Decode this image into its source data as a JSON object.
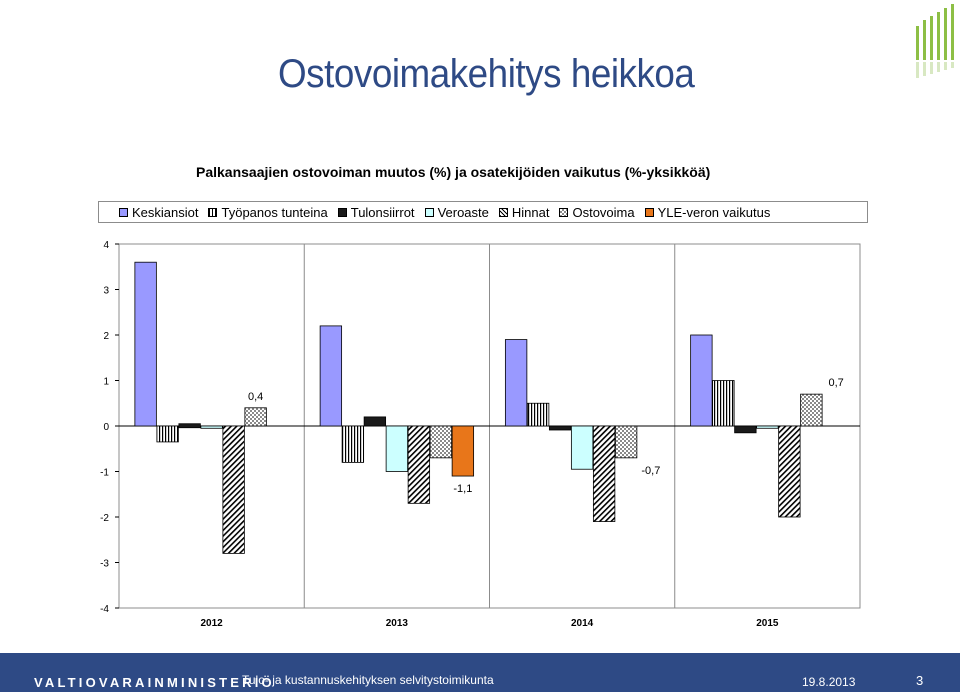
{
  "slide": {
    "title": "Ostovoimakehitys heikkoa"
  },
  "footer": {
    "ministry": "VALTIOVARAINMINISTERIÖ",
    "subtitle": "Tulo- ja kustannuskehityksen selvitystoimikunta",
    "date": "19.8.2013",
    "page": "3"
  },
  "colors": {
    "brand": "#2e4a85",
    "footer_bg": "#2e4a85",
    "logo_green": "#8dbf45"
  },
  "chart_data": {
    "type": "bar",
    "title": "Palkansaajien ostovoiman muutos (%) ja osatekijöiden vaikutus (%-yksikköä)",
    "categories": [
      "2012",
      "2013",
      "2014",
      "2015"
    ],
    "ylim": [
      -4,
      4
    ],
    "yticks": [
      4,
      3,
      2,
      1,
      0,
      -1,
      -2,
      -3,
      -4
    ],
    "grid": "vertical category separators",
    "legend_position": "top",
    "series": [
      {
        "name": "Keskiansiot",
        "values": [
          3.6,
          2.2,
          1.9,
          2.0
        ],
        "color": "#9999ff",
        "pattern": "solid"
      },
      {
        "name": "Työpanos tunteina",
        "values": [
          -0.35,
          -0.8,
          0.5,
          1.0
        ],
        "color": "#ffffff",
        "pattern": "vertical"
      },
      {
        "name": "Tulonsiirrot",
        "values": [
          0.05,
          0.2,
          -0.05,
          -0.15
        ],
        "color": "#1a1a1a",
        "pattern": "solid"
      },
      {
        "name": "Veroaste",
        "values": [
          -0.05,
          -1.0,
          -0.95,
          -0.05
        ],
        "color": "#ccffff",
        "pattern": "solid"
      },
      {
        "name": "Hinnat",
        "values": [
          -2.8,
          -1.7,
          -2.1,
          -2.0
        ],
        "color": "#ffffff",
        "pattern": "diagonal"
      },
      {
        "name": "Ostovoima",
        "values": [
          0.4,
          -0.7,
          -0.7,
          0.7
        ],
        "color": "#ffffff",
        "pattern": "checker"
      },
      {
        "name": "YLE-veron vaikutus",
        "values": [
          null,
          -1.1,
          null,
          null
        ],
        "color": "#e8761a",
        "pattern": "solid"
      }
    ],
    "annotations": [
      {
        "text": "0,4",
        "category": "2012",
        "series": "Ostovoima",
        "value": 0.4
      },
      {
        "text": "-1,1",
        "category": "2013",
        "series": "YLE-veron vaikutus",
        "value": -1.1
      },
      {
        "text": "-0,7",
        "category": "2014",
        "series": "Ostovoima",
        "value": -0.7
      },
      {
        "text": "0,7",
        "category": "2015",
        "series": "Ostovoima",
        "value": 0.7
      }
    ]
  }
}
